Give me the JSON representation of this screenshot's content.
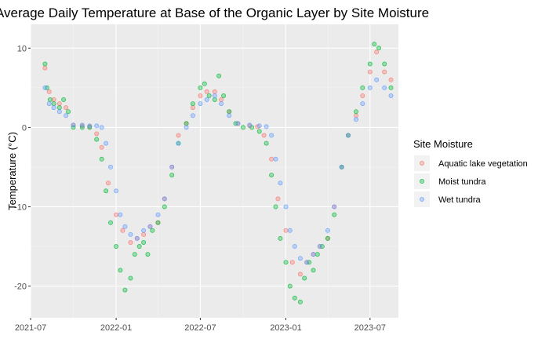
{
  "chart_data": {
    "type": "scatter",
    "title": "Average Daily Temperature at Base of the Organic Layer by Site Moisture",
    "xlabel": "",
    "ylabel": "Temperature (°C)",
    "x_ticks": [
      "2021-07",
      "2022-01",
      "2022-07",
      "2023-01",
      "2023-07"
    ],
    "y_ticks": [
      10,
      0,
      -10,
      -20
    ],
    "xlim": [
      "2021-07-01",
      "2023-08-31"
    ],
    "ylim": [
      -24,
      13
    ],
    "grid": true,
    "legend_position": "right",
    "legend_title": "Site Moisture",
    "series": [
      {
        "name": "Aquatic lake vegetation",
        "color": "#F8766D",
        "points": [
          [
            "2021-08-01",
            7.5
          ],
          [
            "2021-08-10",
            4.5
          ],
          [
            "2021-08-20",
            3.5
          ],
          [
            "2021-09-01",
            3.0
          ],
          [
            "2021-09-15",
            2.5
          ],
          [
            "2021-10-01",
            0.3
          ],
          [
            "2021-10-20",
            0.2
          ],
          [
            "2021-11-05",
            0.1
          ],
          [
            "2021-11-20",
            -0.8
          ],
          [
            "2021-12-01",
            -2.5
          ],
          [
            "2021-12-15",
            -7.0
          ],
          [
            "2022-01-01",
            -11.0
          ],
          [
            "2022-01-15",
            -13.0
          ],
          [
            "2022-02-01",
            -14.5
          ],
          [
            "2022-02-15",
            -14.0
          ],
          [
            "2022-03-01",
            -13.5
          ],
          [
            "2022-03-15",
            -12.5
          ],
          [
            "2022-04-01",
            -12.0
          ],
          [
            "2022-04-15",
            -9.0
          ],
          [
            "2022-05-01",
            -5.0
          ],
          [
            "2022-05-15",
            -1.0
          ],
          [
            "2022-06-01",
            0.5
          ],
          [
            "2022-06-15",
            2.5
          ],
          [
            "2022-07-01",
            4.0
          ],
          [
            "2022-07-15",
            4.5
          ],
          [
            "2022-08-01",
            4.5
          ],
          [
            "2022-08-15",
            3.5
          ],
          [
            "2022-09-01",
            2.0
          ],
          [
            "2022-09-20",
            0.5
          ],
          [
            "2022-10-15",
            0.2
          ],
          [
            "2022-11-01",
            0.1
          ],
          [
            "2022-11-15",
            -1.0
          ],
          [
            "2022-12-01",
            -4.0
          ],
          [
            "2022-12-15",
            -9.0
          ],
          [
            "2023-01-01",
            -13.0
          ],
          [
            "2023-01-15",
            -17.0
          ],
          [
            "2023-02-01",
            -18.5
          ],
          [
            "2023-02-15",
            -17.0
          ],
          [
            "2023-03-01",
            -16.0
          ],
          [
            "2023-03-15",
            -15.0
          ],
          [
            "2023-04-01",
            -14.0
          ],
          [
            "2023-04-15",
            -10.0
          ],
          [
            "2023-05-01",
            -5.0
          ],
          [
            "2023-05-15",
            -1.0
          ],
          [
            "2023-06-01",
            1.5
          ],
          [
            "2023-06-15",
            4.0
          ],
          [
            "2023-07-01",
            7.0
          ],
          [
            "2023-07-15",
            9.5
          ],
          [
            "2023-08-01",
            7.0
          ],
          [
            "2023-08-15",
            6.0
          ]
        ]
      },
      {
        "name": "Moist tundra",
        "color": "#00BA38",
        "points": [
          [
            "2021-08-01",
            8.0
          ],
          [
            "2021-08-05",
            5.0
          ],
          [
            "2021-08-12",
            3.5
          ],
          [
            "2021-08-20",
            3.0
          ],
          [
            "2021-09-01",
            2.5
          ],
          [
            "2021-09-10",
            3.5
          ],
          [
            "2021-09-20",
            2.0
          ],
          [
            "2021-10-01",
            0.0
          ],
          [
            "2021-10-20",
            0.0
          ],
          [
            "2021-11-05",
            0.0
          ],
          [
            "2021-11-20",
            -1.5
          ],
          [
            "2021-12-01",
            -4.0
          ],
          [
            "2021-12-10",
            -8.0
          ],
          [
            "2021-12-20",
            -12.0
          ],
          [
            "2022-01-01",
            -15.0
          ],
          [
            "2022-01-10",
            -18.0
          ],
          [
            "2022-01-20",
            -20.5
          ],
          [
            "2022-02-01",
            -19.0
          ],
          [
            "2022-02-10",
            -16.0
          ],
          [
            "2022-02-20",
            -15.0
          ],
          [
            "2022-03-01",
            -14.5
          ],
          [
            "2022-03-10",
            -16.0
          ],
          [
            "2022-03-20",
            -13.0
          ],
          [
            "2022-04-01",
            -12.0
          ],
          [
            "2022-04-15",
            -10.0
          ],
          [
            "2022-05-01",
            -6.0
          ],
          [
            "2022-05-15",
            -2.0
          ],
          [
            "2022-06-01",
            0.5
          ],
          [
            "2022-06-15",
            3.0
          ],
          [
            "2022-07-01",
            5.0
          ],
          [
            "2022-07-10",
            5.5
          ],
          [
            "2022-07-20",
            4.0
          ],
          [
            "2022-08-01",
            3.5
          ],
          [
            "2022-08-10",
            6.5
          ],
          [
            "2022-08-20",
            4.0
          ],
          [
            "2022-09-01",
            2.0
          ],
          [
            "2022-09-15",
            0.5
          ],
          [
            "2022-10-01",
            0.0
          ],
          [
            "2022-10-20",
            0.0
          ],
          [
            "2022-11-05",
            -0.5
          ],
          [
            "2022-11-20",
            -2.0
          ],
          [
            "2022-12-01",
            -6.0
          ],
          [
            "2022-12-10",
            -10.0
          ],
          [
            "2022-12-20",
            -14.0
          ],
          [
            "2023-01-01",
            -17.0
          ],
          [
            "2023-01-10",
            -20.0
          ],
          [
            "2023-01-20",
            -21.5
          ],
          [
            "2023-02-01",
            -22.0
          ],
          [
            "2023-02-10",
            -19.0
          ],
          [
            "2023-02-20",
            -17.0
          ],
          [
            "2023-03-01",
            -18.0
          ],
          [
            "2023-03-10",
            -16.0
          ],
          [
            "2023-03-20",
            -15.0
          ],
          [
            "2023-04-01",
            -14.0
          ],
          [
            "2023-04-15",
            -11.0
          ],
          [
            "2023-05-01",
            -5.0
          ],
          [
            "2023-05-15",
            -1.0
          ],
          [
            "2023-06-01",
            2.0
          ],
          [
            "2023-06-15",
            5.0
          ],
          [
            "2023-07-01",
            8.0
          ],
          [
            "2023-07-10",
            10.5
          ],
          [
            "2023-07-20",
            10.0
          ],
          [
            "2023-08-01",
            8.0
          ],
          [
            "2023-08-15",
            5.0
          ]
        ]
      },
      {
        "name": "Wet tundra",
        "color": "#619CFF",
        "points": [
          [
            "2021-08-01",
            5.0
          ],
          [
            "2021-08-10",
            3.0
          ],
          [
            "2021-08-20",
            2.5
          ],
          [
            "2021-09-01",
            2.0
          ],
          [
            "2021-09-15",
            1.5
          ],
          [
            "2021-10-01",
            0.3
          ],
          [
            "2021-10-20",
            0.3
          ],
          [
            "2021-11-05",
            0.2
          ],
          [
            "2021-11-20",
            0.2
          ],
          [
            "2021-12-01",
            0.0
          ],
          [
            "2021-12-10",
            -2.0
          ],
          [
            "2021-12-20",
            -5.0
          ],
          [
            "2022-01-01",
            -8.0
          ],
          [
            "2022-01-10",
            -11.0
          ],
          [
            "2022-01-20",
            -12.5
          ],
          [
            "2022-02-01",
            -13.5
          ],
          [
            "2022-02-15",
            -14.0
          ],
          [
            "2022-03-01",
            -13.0
          ],
          [
            "2022-03-15",
            -12.5
          ],
          [
            "2022-04-01",
            -11.0
          ],
          [
            "2022-04-15",
            -9.0
          ],
          [
            "2022-05-01",
            -5.0
          ],
          [
            "2022-05-15",
            -2.0
          ],
          [
            "2022-06-01",
            0.0
          ],
          [
            "2022-06-15",
            1.5
          ],
          [
            "2022-07-01",
            3.0
          ],
          [
            "2022-07-15",
            3.5
          ],
          [
            "2022-08-01",
            4.0
          ],
          [
            "2022-08-15",
            3.0
          ],
          [
            "2022-09-01",
            1.5
          ],
          [
            "2022-09-20",
            0.5
          ],
          [
            "2022-10-15",
            0.3
          ],
          [
            "2022-11-05",
            0.2
          ],
          [
            "2022-11-20",
            0.1
          ],
          [
            "2022-12-01",
            -1.0
          ],
          [
            "2022-12-10",
            -4.0
          ],
          [
            "2022-12-20",
            -7.0
          ],
          [
            "2023-01-01",
            -10.0
          ],
          [
            "2023-01-10",
            -13.0
          ],
          [
            "2023-01-20",
            -15.0
          ],
          [
            "2023-02-01",
            -16.5
          ],
          [
            "2023-02-15",
            -17.0
          ],
          [
            "2023-03-01",
            -16.0
          ],
          [
            "2023-03-15",
            -15.0
          ],
          [
            "2023-04-01",
            -13.0
          ],
          [
            "2023-04-15",
            -10.0
          ],
          [
            "2023-05-01",
            -5.0
          ],
          [
            "2023-05-15",
            -1.0
          ],
          [
            "2023-06-01",
            1.0
          ],
          [
            "2023-06-15",
            3.0
          ],
          [
            "2023-07-01",
            5.0
          ],
          [
            "2023-07-15",
            6.0
          ],
          [
            "2023-08-01",
            5.0
          ],
          [
            "2023-08-15",
            4.0
          ]
        ]
      }
    ]
  }
}
